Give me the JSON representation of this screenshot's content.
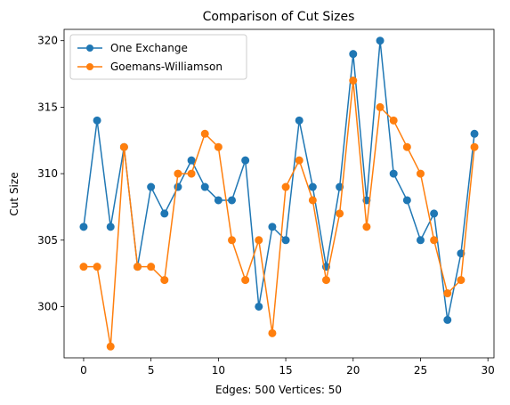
{
  "chart_data": {
    "type": "line",
    "title": "Comparison of Cut Sizes",
    "xlabel": "Edges: 500 Vertices: 50",
    "ylabel": "Cut Size",
    "xlim": [
      -1.45,
      30.45
    ],
    "ylim": [
      296.15,
      320.85
    ],
    "x_ticks": [
      0,
      5,
      10,
      15,
      20,
      25,
      30
    ],
    "y_ticks": [
      300,
      305,
      310,
      315,
      320
    ],
    "grid": false,
    "legend_position": "top-left",
    "x": [
      0,
      1,
      2,
      3,
      4,
      5,
      6,
      7,
      8,
      9,
      10,
      11,
      12,
      13,
      14,
      15,
      16,
      17,
      18,
      19,
      20,
      21,
      22,
      23,
      24,
      25,
      26,
      27,
      28,
      29
    ],
    "series": [
      {
        "name": "One Exchange",
        "color": "#1f77b4",
        "marker": "circle",
        "values": [
          306,
          314,
          306,
          312,
          303,
          309,
          307,
          309,
          311,
          309,
          308,
          308,
          311,
          300,
          306,
          305,
          314,
          309,
          303,
          309,
          319,
          308,
          320,
          310,
          308,
          305,
          307,
          299,
          304,
          313
        ]
      },
      {
        "name": "Goemans-Williamson",
        "color": "#ff7f0e",
        "marker": "circle",
        "values": [
          303,
          303,
          297,
          312,
          303,
          303,
          302,
          310,
          310,
          313,
          312,
          305,
          302,
          305,
          298,
          309,
          311,
          308,
          302,
          307,
          317,
          306,
          315,
          314,
          312,
          310,
          305,
          301,
          302,
          312
        ]
      }
    ]
  }
}
